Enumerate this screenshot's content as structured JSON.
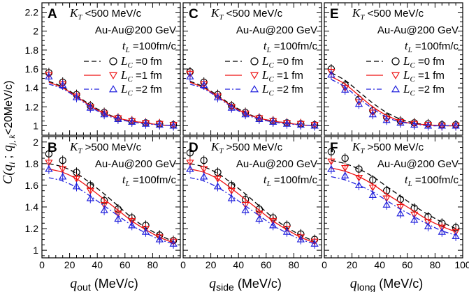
{
  "chart_data": {
    "type": "line",
    "y_axis_label": {
      "prefix": "C(",
      "q_i": "q",
      "q_i_sub": "i",
      "sep": " ; ",
      "q_jk": "q",
      "q_jk_sub": "j, k",
      "suffix": "<20MeV/c)"
    },
    "x_axis_labels": [
      {
        "var": "q",
        "sub": "out",
        "unit": " (MeV/c)"
      },
      {
        "var": "q",
        "sub": "side",
        "unit": " (MeV/c)"
      },
      {
        "var": "q",
        "sub": "long",
        "unit": " (MeV/c)"
      }
    ],
    "xlim": [
      0,
      100
    ],
    "x_ticks": [
      "0",
      "20",
      "40",
      "60",
      "80"
    ],
    "x_ticks_last": [
      "0",
      "20",
      "40",
      "60",
      "80",
      "100"
    ],
    "rows": [
      {
        "ylim": [
          0.9,
          2.3
        ],
        "y_ticks": [
          "1",
          "1.2",
          "1.4",
          "1.6",
          "1.8",
          "2",
          "2.2"
        ]
      },
      {
        "ylim": [
          0.93,
          2.05
        ],
        "y_ticks": [
          "1",
          "1.2",
          "1.4",
          "1.6",
          "1.8",
          "2"
        ]
      }
    ],
    "info_lines": {
      "beam": "Au-Au@200 GeV",
      "tl_var": "t",
      "tl_sub": "L",
      "tl_val": " =100fm/c"
    },
    "legend": [
      {
        "var": "L",
        "sub": "C",
        "val": " =0 fm",
        "color": "#000000",
        "dash": "7,4",
        "marker": "circle"
      },
      {
        "var": "L",
        "sub": "C",
        "val": " =1 fm",
        "color": "#ee1111",
        "dash": "",
        "marker": "triangle-down"
      },
      {
        "var": "L",
        "sub": "C",
        "val": " =2 fm",
        "color": "#2222dd",
        "dash": "7,3,2,3",
        "marker": "triangle-up"
      }
    ],
    "x": [
      5,
      15,
      25,
      35,
      45,
      55,
      65,
      75,
      85,
      95
    ],
    "panels": [
      {
        "letter": "A",
        "row": 0,
        "col": 0,
        "kt_var": "K",
        "kt_sub": "T",
        "kt_cut": " <500 MeV/c",
        "series": [
          {
            "name": "LC=0 fm",
            "points": [
              1.56,
              1.46,
              1.33,
              1.21,
              1.14,
              1.08,
              1.05,
              1.03,
              1.02,
              1.01
            ],
            "curve": [
              1.47,
              1.41,
              1.32,
              1.22,
              1.14,
              1.08,
              1.05,
              1.03,
              1.01,
              1.0
            ]
          },
          {
            "name": "LC=1 fm",
            "points": [
              1.54,
              1.44,
              1.31,
              1.2,
              1.13,
              1.08,
              1.05,
              1.03,
              1.02,
              1.01
            ],
            "curve": [
              1.46,
              1.4,
              1.31,
              1.21,
              1.13,
              1.08,
              1.05,
              1.03,
              1.01,
              1.0
            ]
          },
          {
            "name": "LC=2 fm",
            "points": [
              1.52,
              1.43,
              1.3,
              1.19,
              1.12,
              1.07,
              1.04,
              1.02,
              1.01,
              1.0
            ],
            "curve": [
              1.44,
              1.39,
              1.3,
              1.2,
              1.12,
              1.07,
              1.04,
              1.02,
              1.01,
              1.0
            ]
          }
        ]
      },
      {
        "letter": "C",
        "row": 0,
        "col": 1,
        "kt_var": "K",
        "kt_sub": "T",
        "kt_cut": " <500 MeV/c",
        "series": [
          {
            "name": "LC=0 fm",
            "points": [
              1.57,
              1.46,
              1.33,
              1.21,
              1.14,
              1.08,
              1.05,
              1.03,
              1.02,
              1.01
            ],
            "curve": [
              1.47,
              1.41,
              1.32,
              1.22,
              1.14,
              1.08,
              1.05,
              1.03,
              1.01,
              1.0
            ]
          },
          {
            "name": "LC=1 fm",
            "points": [
              1.55,
              1.44,
              1.31,
              1.2,
              1.13,
              1.08,
              1.05,
              1.03,
              1.02,
              1.01
            ],
            "curve": [
              1.46,
              1.4,
              1.31,
              1.21,
              1.13,
              1.08,
              1.05,
              1.03,
              1.01,
              1.0
            ]
          },
          {
            "name": "LC=2 fm",
            "points": [
              1.52,
              1.43,
              1.3,
              1.19,
              1.12,
              1.07,
              1.04,
              1.02,
              1.01,
              1.0
            ],
            "curve": [
              1.44,
              1.39,
              1.3,
              1.2,
              1.12,
              1.07,
              1.04,
              1.02,
              1.01,
              1.0
            ]
          }
        ]
      },
      {
        "letter": "E",
        "row": 0,
        "col": 2,
        "kt_var": "K",
        "kt_sub": "T",
        "kt_cut": " <500 MeV/c",
        "series": [
          {
            "name": "LC=0 fm",
            "points": [
              1.6,
              1.43,
              1.28,
              1.16,
              1.09,
              1.05,
              1.03,
              1.02,
              1.01,
              1.01
            ],
            "curve": [
              1.56,
              1.48,
              1.36,
              1.24,
              1.14,
              1.07,
              1.03,
              1.01,
              1.0,
              1.0
            ]
          },
          {
            "name": "LC=1 fm",
            "points": [
              1.57,
              1.4,
              1.25,
              1.14,
              1.07,
              1.04,
              1.02,
              1.01,
              1.0,
              1.0
            ],
            "curve": [
              1.52,
              1.44,
              1.32,
              1.2,
              1.11,
              1.05,
              1.02,
              1.01,
              1.0,
              1.0
            ]
          },
          {
            "name": "LC=2 fm",
            "points": [
              1.54,
              1.38,
              1.23,
              1.12,
              1.06,
              1.03,
              1.01,
              1.0,
              1.0,
              1.0
            ],
            "curve": [
              1.49,
              1.41,
              1.29,
              1.18,
              1.09,
              1.04,
              1.02,
              1.0,
              1.0,
              1.0
            ]
          }
        ]
      },
      {
        "letter": "B",
        "row": 1,
        "col": 0,
        "kt_var": "K",
        "kt_sub": "T",
        "kt_cut": " >500 MeV/c",
        "series": [
          {
            "name": "LC=0 fm",
            "points": [
              1.89,
              1.83,
              1.72,
              1.6,
              1.46,
              1.38,
              1.3,
              1.23,
              1.14,
              1.09
            ],
            "curve": [
              1.8,
              1.77,
              1.71,
              1.62,
              1.52,
              1.41,
              1.3,
              1.21,
              1.14,
              1.08
            ]
          },
          {
            "name": "LC=1 fm",
            "points": [
              1.81,
              1.75,
              1.66,
              1.55,
              1.42,
              1.34,
              1.27,
              1.2,
              1.12,
              1.08
            ],
            "curve": [
              1.75,
              1.72,
              1.66,
              1.57,
              1.47,
              1.37,
              1.27,
              1.19,
              1.12,
              1.07
            ]
          },
          {
            "name": "LC=2 fm",
            "points": [
              1.75,
              1.68,
              1.59,
              1.48,
              1.37,
              1.29,
              1.23,
              1.17,
              1.1,
              1.06
            ],
            "curve": [
              1.67,
              1.64,
              1.58,
              1.5,
              1.41,
              1.32,
              1.23,
              1.16,
              1.1,
              1.06
            ]
          }
        ]
      },
      {
        "letter": "D",
        "row": 1,
        "col": 1,
        "kt_var": "K",
        "kt_sub": "T",
        "kt_cut": " >500 MeV/c",
        "series": [
          {
            "name": "LC=0 fm",
            "points": [
              1.9,
              1.83,
              1.72,
              1.6,
              1.47,
              1.38,
              1.3,
              1.23,
              1.15,
              1.1
            ],
            "curve": [
              1.8,
              1.77,
              1.71,
              1.62,
              1.52,
              1.41,
              1.3,
              1.21,
              1.14,
              1.08
            ]
          },
          {
            "name": "LC=1 fm",
            "points": [
              1.81,
              1.75,
              1.66,
              1.55,
              1.42,
              1.34,
              1.27,
              1.2,
              1.12,
              1.08
            ],
            "curve": [
              1.75,
              1.72,
              1.66,
              1.57,
              1.47,
              1.37,
              1.27,
              1.19,
              1.12,
              1.07
            ]
          },
          {
            "name": "LC=2 fm",
            "points": [
              1.75,
              1.68,
              1.59,
              1.48,
              1.37,
              1.29,
              1.23,
              1.17,
              1.1,
              1.06
            ],
            "curve": [
              1.67,
              1.64,
              1.58,
              1.5,
              1.41,
              1.32,
              1.23,
              1.16,
              1.1,
              1.06
            ]
          }
        ]
      },
      {
        "letter": "F",
        "row": 1,
        "col": 2,
        "kt_var": "K",
        "kt_sub": "T",
        "kt_cut": " >500 MeV/c",
        "series": [
          {
            "name": "LC=0 fm",
            "points": [
              1.91,
              1.85,
              1.75,
              1.65,
              1.55,
              1.47,
              1.39,
              1.31,
              1.25,
              1.21
            ],
            "curve": [
              1.83,
              1.8,
              1.75,
              1.68,
              1.59,
              1.5,
              1.41,
              1.33,
              1.26,
              1.2
            ]
          },
          {
            "name": "LC=1 fm",
            "points": [
              1.82,
              1.76,
              1.67,
              1.58,
              1.48,
              1.4,
              1.33,
              1.26,
              1.21,
              1.17
            ],
            "curve": [
              1.76,
              1.73,
              1.68,
              1.61,
              1.52,
              1.44,
              1.36,
              1.28,
              1.22,
              1.17
            ]
          },
          {
            "name": "LC=2 fm",
            "points": [
              1.75,
              1.69,
              1.6,
              1.51,
              1.42,
              1.34,
              1.28,
              1.22,
              1.17,
              1.13
            ],
            "curve": [
              1.68,
              1.65,
              1.6,
              1.54,
              1.46,
              1.38,
              1.31,
              1.24,
              1.18,
              1.14
            ]
          }
        ]
      }
    ]
  }
}
